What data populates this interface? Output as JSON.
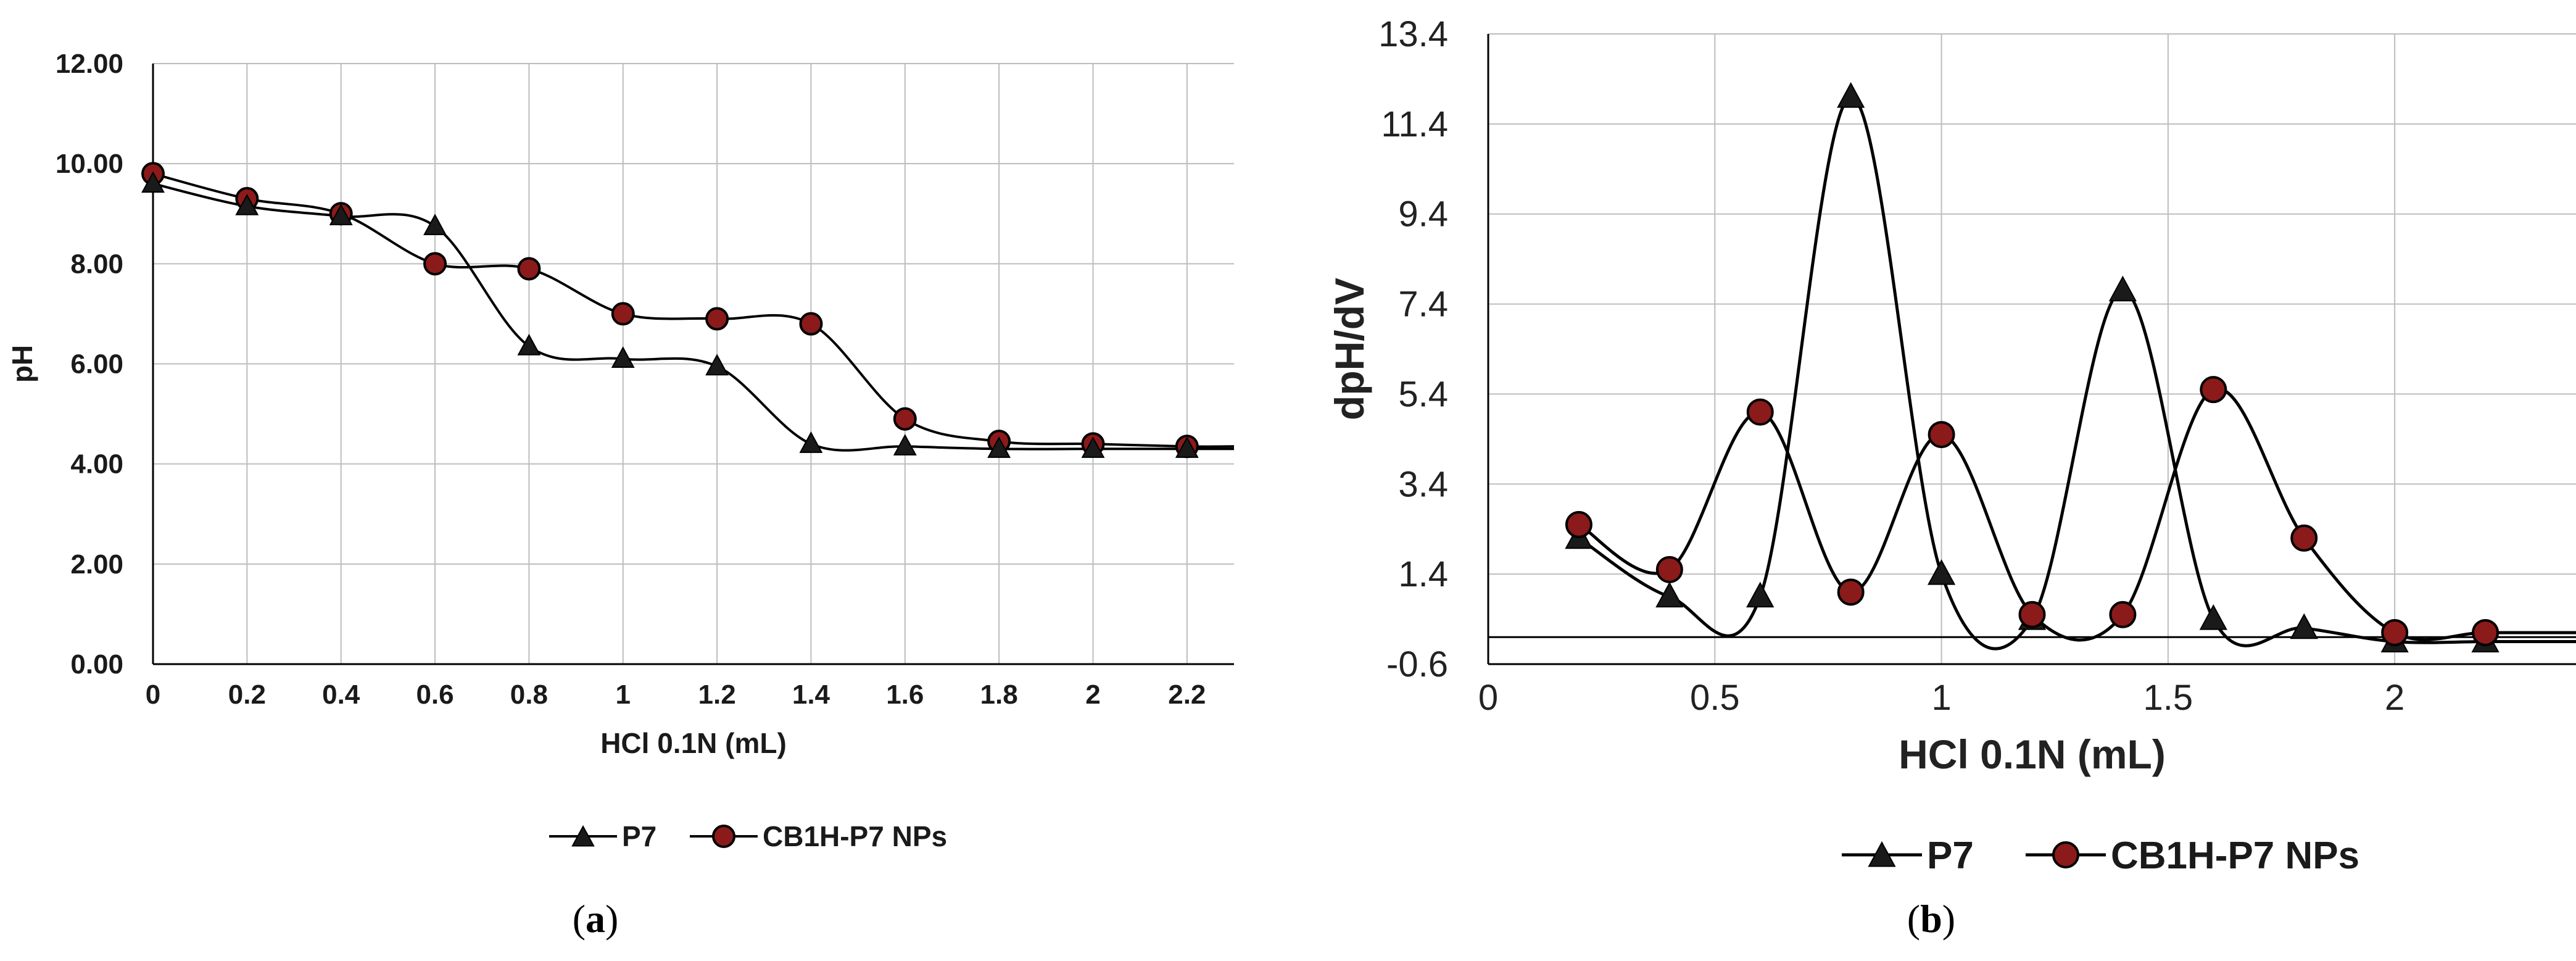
{
  "chart_data": [
    {
      "type": "line",
      "panel_label": "(a)",
      "panel_letter": "a",
      "xlabel": "HCl 0.1N (mL)",
      "ylabel": "pH",
      "xlim": [
        0,
        2.3
      ],
      "ylim": [
        0,
        12
      ],
      "xticks": [
        "0",
        "0.2",
        "0.4",
        "0.6",
        "0.8",
        "1",
        "1.2",
        "1.4",
        "1.6",
        "1.8",
        "2",
        "2.2"
      ],
      "yticks": [
        "0.00",
        "2.00",
        "4.00",
        "6.00",
        "8.00",
        "10.00",
        "12.00"
      ],
      "grid": true,
      "legend_position": "bottom",
      "series": [
        {
          "name": "P7",
          "marker": "triangle",
          "color": "#1a1a1a",
          "x": [
            0,
            0.2,
            0.4,
            0.6,
            0.8,
            1.0,
            1.2,
            1.4,
            1.6,
            1.8,
            2.0,
            2.2
          ],
          "y": [
            9.6,
            9.15,
            8.95,
            8.75,
            6.35,
            6.1,
            5.95,
            4.4,
            4.35,
            4.3,
            4.3,
            4.3
          ]
        },
        {
          "name": "CB1H-P7 NPs",
          "marker": "circle",
          "color": "#8b1a1a",
          "x": [
            0,
            0.2,
            0.4,
            0.6,
            0.8,
            1.0,
            1.2,
            1.4,
            1.6,
            1.8,
            2.0,
            2.2
          ],
          "y": [
            9.8,
            9.3,
            9.0,
            8.0,
            7.9,
            7.0,
            6.9,
            6.8,
            4.9,
            4.45,
            4.4,
            4.35
          ]
        }
      ]
    },
    {
      "type": "line",
      "panel_label": "(b)",
      "panel_letter": "b",
      "xlabel": "HCl 0.1N (mL)",
      "ylabel": "dpH/dV",
      "xlim": [
        0,
        2.4
      ],
      "ylim": [
        -0.6,
        13.4
      ],
      "xticks": [
        "0",
        "0.5",
        "1",
        "1.5",
        "2"
      ],
      "yticks": [
        "-0.6",
        "1.4",
        "3.4",
        "5.4",
        "7.4",
        "9.4",
        "11.4",
        "13.4"
      ],
      "grid": true,
      "legend_position": "bottom",
      "series": [
        {
          "name": "P7",
          "marker": "triangle",
          "color": "#1a1a1a",
          "x": [
            0.2,
            0.4,
            0.6,
            0.8,
            1.0,
            1.2,
            1.4,
            1.6,
            1.8,
            2.0,
            2.2
          ],
          "y": [
            2.2,
            0.9,
            0.9,
            12.0,
            1.4,
            0.4,
            7.7,
            0.4,
            0.2,
            -0.1,
            -0.1
          ]
        },
        {
          "name": "CB1H-P7 NPs",
          "marker": "circle",
          "color": "#8b1a1a",
          "x": [
            0.2,
            0.4,
            0.6,
            0.8,
            1.0,
            1.2,
            1.4,
            1.6,
            1.8,
            2.0,
            2.2
          ],
          "y": [
            2.5,
            1.5,
            5.0,
            1.0,
            4.5,
            0.5,
            0.5,
            5.5,
            2.2,
            0.1,
            0.1
          ]
        }
      ]
    }
  ]
}
